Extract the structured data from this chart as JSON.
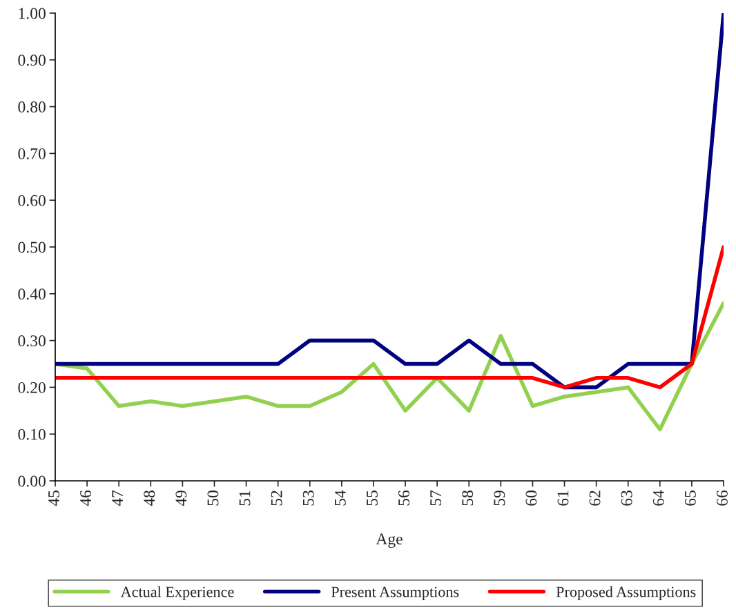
{
  "chart_data": {
    "type": "line",
    "xlabel": "Age",
    "categories": [
      "45",
      "46",
      "47",
      "48",
      "49",
      "50",
      "51",
      "52",
      "53",
      "54",
      "55",
      "56",
      "57",
      "58",
      "59",
      "60",
      "61",
      "62",
      "63",
      "64",
      "65",
      "66"
    ],
    "series": [
      {
        "name": "Actual Experience",
        "color": "#92d050",
        "values": [
          0.25,
          0.24,
          0.16,
          0.17,
          0.16,
          0.17,
          0.18,
          0.16,
          0.16,
          0.19,
          0.25,
          0.15,
          0.22,
          0.15,
          0.31,
          0.16,
          0.18,
          0.19,
          0.2,
          0.11,
          0.25,
          0.38
        ]
      },
      {
        "name": "Present Assumptions",
        "color": "#000080",
        "values": [
          0.25,
          0.25,
          0.25,
          0.25,
          0.25,
          0.25,
          0.25,
          0.25,
          0.3,
          0.3,
          0.3,
          0.25,
          0.25,
          0.3,
          0.25,
          0.25,
          0.2,
          0.2,
          0.25,
          0.25,
          0.25,
          1.0
        ]
      },
      {
        "name": "Proposed Assumptions",
        "color": "#ff0000",
        "values": [
          0.22,
          0.22,
          0.22,
          0.22,
          0.22,
          0.22,
          0.22,
          0.22,
          0.22,
          0.22,
          0.22,
          0.22,
          0.22,
          0.22,
          0.22,
          0.22,
          0.2,
          0.22,
          0.22,
          0.2,
          0.25,
          0.5
        ]
      }
    ],
    "ylim": [
      0,
      1
    ],
    "yticks": [
      {
        "value": 0,
        "label": "0.00"
      },
      {
        "value": 0.1,
        "label": "0.10"
      },
      {
        "value": 0.2,
        "label": "0.20"
      },
      {
        "value": 0.3,
        "label": "0.30"
      },
      {
        "value": 0.4,
        "label": "0.40"
      },
      {
        "value": 0.5,
        "label": "0.50"
      },
      {
        "value": 0.6,
        "label": "0.60"
      },
      {
        "value": 0.7,
        "label": "0.70"
      },
      {
        "value": 0.8,
        "label": "0.80"
      },
      {
        "value": 0.9,
        "label": "0.90"
      },
      {
        "value": 1,
        "label": "1.00"
      }
    ],
    "grid": false,
    "legend": "bottom",
    "marker": "none",
    "line_style": "solid"
  }
}
